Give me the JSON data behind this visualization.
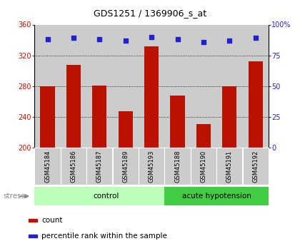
{
  "title": "GDS1251 / 1369906_s_at",
  "samples": [
    "GSM45184",
    "GSM45186",
    "GSM45187",
    "GSM45189",
    "GSM45193",
    "GSM45188",
    "GSM45190",
    "GSM45191",
    "GSM45192"
  ],
  "counts": [
    280,
    308,
    281,
    247,
    332,
    268,
    231,
    280,
    312
  ],
  "percentiles": [
    88,
    89,
    88,
    87,
    90,
    88,
    86,
    87,
    89
  ],
  "n_control": 5,
  "n_acute": 4,
  "group_colors": {
    "control": "#bbffbb",
    "acute hypotension": "#44cc44"
  },
  "bar_color": "#bb1100",
  "dot_color": "#2222cc",
  "ylim_left": [
    200,
    360
  ],
  "ylim_right": [
    0,
    100
  ],
  "yticks_left": [
    200,
    240,
    280,
    320,
    360
  ],
  "yticks_right": [
    0,
    25,
    50,
    75,
    100
  ],
  "ytick_labels_right": [
    "0",
    "25",
    "50",
    "75",
    "100%"
  ],
  "grid_values": [
    240,
    280,
    320
  ],
  "bar_width": 0.55,
  "bg_color": "#ffffff",
  "plot_bg": "#ffffff",
  "col_bg": "#cccccc",
  "legend_count_label": "count",
  "legend_pct_label": "percentile rank within the sample",
  "stress_label": "stress",
  "control_label": "control",
  "acute_label": "acute hypotension",
  "title_fontsize": 9,
  "axis_fontsize": 7,
  "label_fontsize": 6,
  "group_fontsize": 7.5,
  "legend_fontsize": 7.5
}
